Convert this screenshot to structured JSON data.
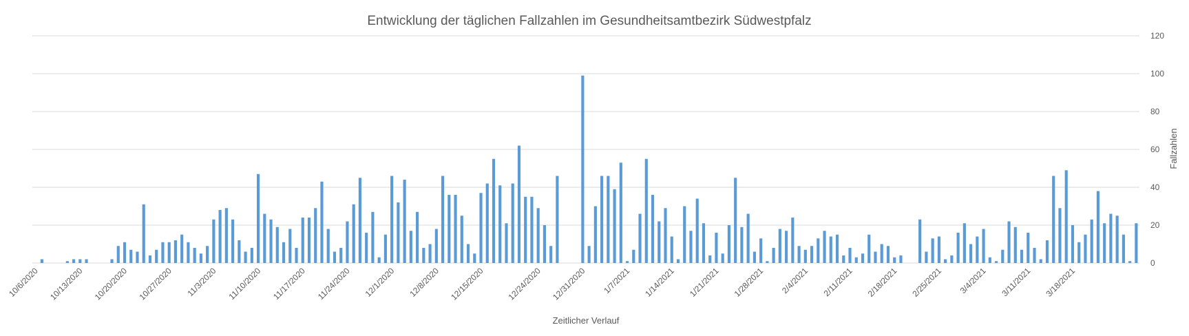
{
  "chart_data": {
    "type": "bar",
    "title": "Entwicklung der täglichen Fallzahlen im Gesundheitsamtbezirk Südwestpfalz",
    "xlabel": "Zeitlicher Verlauf",
    "ylabel": "Fallzahlen",
    "ylim": [
      0,
      120
    ],
    "y_ticks": [
      0,
      20,
      40,
      60,
      80,
      100,
      120
    ],
    "y_axis_side": "right",
    "grid": true,
    "legend": "none",
    "bar_color": "#5b9bd5",
    "x_ticks": [
      {
        "index": 0,
        "label": "10/6/2020"
      },
      {
        "index": 7,
        "label": "10/13/2020"
      },
      {
        "index": 14,
        "label": "10/20/2020"
      },
      {
        "index": 21,
        "label": "10/27/2020"
      },
      {
        "index": 28,
        "label": "11/3/2020"
      },
      {
        "index": 35,
        "label": "11/10/2020"
      },
      {
        "index": 42,
        "label": "11/17/2020"
      },
      {
        "index": 49,
        "label": "11/24/2020"
      },
      {
        "index": 56,
        "label": "12/1/2020"
      },
      {
        "index": 63,
        "label": "12/8/2020"
      },
      {
        "index": 70,
        "label": "12/15/2020"
      },
      {
        "index": 79,
        "label": "12/24/2020"
      },
      {
        "index": 86,
        "label": "12/31/2020"
      },
      {
        "index": 93,
        "label": "1/7/2021"
      },
      {
        "index": 100,
        "label": "1/14/2021"
      },
      {
        "index": 107,
        "label": "1/21/2021"
      },
      {
        "index": 114,
        "label": "1/28/2021"
      },
      {
        "index": 121,
        "label": "2/4/2021"
      },
      {
        "index": 128,
        "label": "2/11/2021"
      },
      {
        "index": 135,
        "label": "2/18/2021"
      },
      {
        "index": 142,
        "label": "2/25/2021"
      },
      {
        "index": 149,
        "label": "3/4/2021"
      },
      {
        "index": 156,
        "label": "3/11/2021"
      },
      {
        "index": 163,
        "label": "3/18/2021"
      }
    ],
    "values": [
      0,
      2,
      0,
      0,
      0,
      1,
      2,
      2,
      2,
      0,
      0,
      0,
      2,
      9,
      11,
      7,
      6,
      31,
      4,
      7,
      11,
      11,
      12,
      15,
      11,
      8,
      5,
      9,
      23,
      28,
      29,
      23,
      12,
      6,
      8,
      47,
      26,
      23,
      19,
      11,
      18,
      8,
      24,
      24,
      29,
      43,
      18,
      6,
      8,
      22,
      31,
      45,
      16,
      27,
      3,
      15,
      46,
      32,
      44,
      17,
      27,
      8,
      10,
      18,
      46,
      36,
      36,
      25,
      10,
      5,
      37,
      42,
      55,
      41,
      21,
      42,
      62,
      35,
      35,
      29,
      20,
      9,
      46,
      0,
      0,
      0,
      99,
      9,
      30,
      46,
      46,
      39,
      53,
      1,
      7,
      26,
      55,
      36,
      22,
      29,
      14,
      2,
      30,
      17,
      34,
      21,
      4,
      16,
      5,
      20,
      45,
      19,
      26,
      6,
      13,
      1,
      8,
      18,
      17,
      24,
      9,
      7,
      9,
      13,
      17,
      14,
      15,
      4,
      8,
      3,
      5,
      15,
      6,
      10,
      9,
      3,
      4,
      0,
      0,
      23,
      6,
      13,
      14,
      2,
      4,
      16,
      21,
      10,
      14,
      18,
      3,
      1,
      7,
      22,
      19,
      7,
      16,
      8,
      2,
      12,
      46,
      29,
      49,
      20,
      11,
      15,
      23,
      38,
      21,
      26,
      25,
      15,
      1,
      21
    ]
  }
}
